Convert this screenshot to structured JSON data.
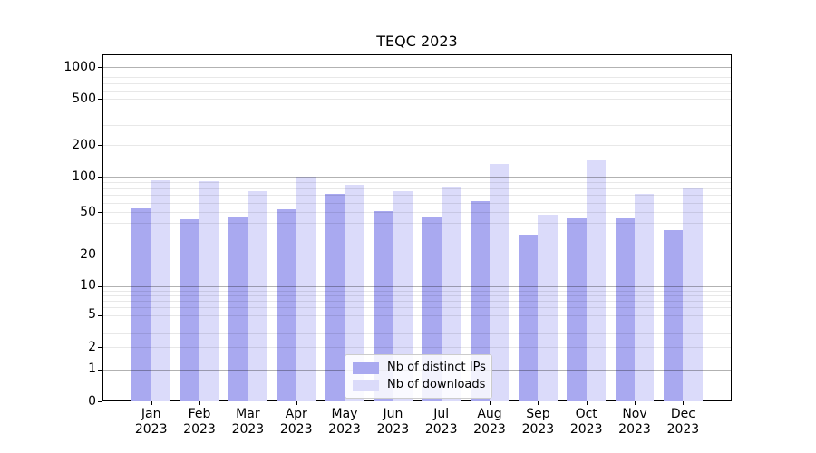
{
  "chart_data": {
    "type": "bar",
    "title": "TEQC 2023",
    "categories": [
      "Jan 2023",
      "Feb 2023",
      "Mar 2023",
      "Apr 2023",
      "May 2023",
      "Jun 2023",
      "Jul 2023",
      "Aug 2023",
      "Sep 2023",
      "Oct 2023",
      "Nov 2023",
      "Dec 2023"
    ],
    "months": [
      "Jan",
      "Feb",
      "Mar",
      "Apr",
      "May",
      "Jun",
      "Jul",
      "Aug",
      "Sep",
      "Oct",
      "Nov",
      "Dec"
    ],
    "year": "2023",
    "series": [
      {
        "name": "Nb of distinct IPs",
        "color": "#a9a9f0",
        "values": [
          54,
          43,
          45,
          53,
          72,
          51,
          46,
          62,
          31,
          44,
          44,
          34
        ]
      },
      {
        "name": "Nb of downloads",
        "color": "#dbdbfa",
        "values": [
          93,
          91,
          76,
          100,
          85,
          75,
          83,
          133,
          47,
          143,
          72,
          79
        ]
      }
    ],
    "yscale": "symlog",
    "yticks": [
      0,
      1,
      2,
      5,
      10,
      20,
      50,
      100,
      200,
      500,
      1000
    ],
    "ylim": [
      0,
      1300
    ],
    "xlabel": "",
    "ylabel": "",
    "grid": "horizontal major+minor, drawn over bars",
    "legend_position": "lower center"
  },
  "colors": {
    "background": "#ffffff",
    "axis": "#000000",
    "grid_major": "rgba(0,0,0,0.30)",
    "grid_minor": "rgba(0,0,0,0.09)"
  }
}
